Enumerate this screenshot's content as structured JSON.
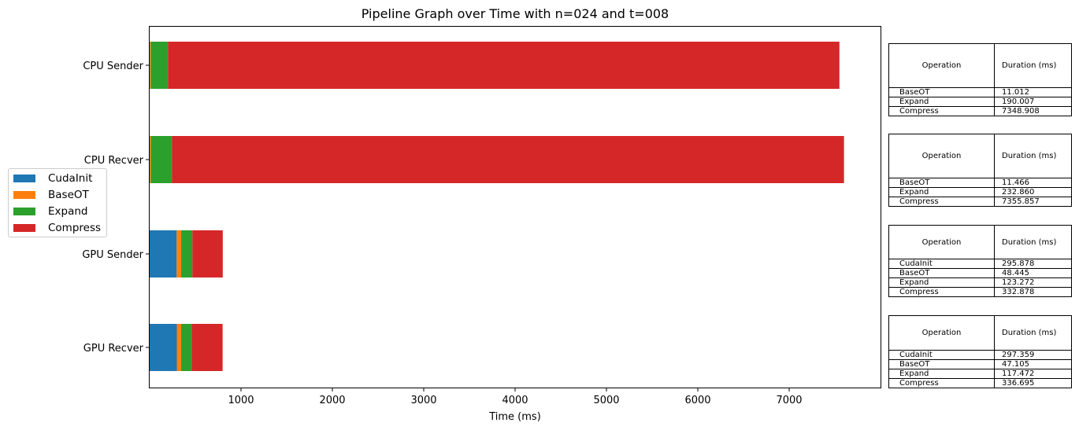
{
  "chart_data": {
    "type": "bar",
    "orientation": "horizontal",
    "stacked": true,
    "title": "Pipeline Graph over Time with n=024 and t=008",
    "xlabel": "Time (ms)",
    "ylabel": "",
    "xlim": [
      0,
      8000
    ],
    "xticks": [
      "1000",
      "2000",
      "3000",
      "4000",
      "5000",
      "6000",
      "7000"
    ],
    "categories": [
      "CPU Sender",
      "CPU Recver",
      "GPU Sender",
      "GPU Recver"
    ],
    "legend_position": "left",
    "series": [
      {
        "name": "CudaInit",
        "color": "#1f77b4",
        "values": [
          0,
          0,
          295.878,
          297.359
        ]
      },
      {
        "name": "BaseOT",
        "color": "#ff7f0e",
        "values": [
          11.012,
          11.466,
          48.445,
          47.105
        ]
      },
      {
        "name": "Expand",
        "color": "#2ca02c",
        "values": [
          190.007,
          232.86,
          123.272,
          117.472
        ]
      },
      {
        "name": "Compress",
        "color": "#d62728",
        "values": [
          7348.908,
          7355.857,
          332.878,
          336.695
        ]
      }
    ]
  },
  "tables": [
    {
      "header": [
        "Operation",
        "Duration (ms)"
      ],
      "rows": [
        [
          "BaseOT",
          "11.012"
        ],
        [
          "Expand",
          "190.007"
        ],
        [
          "Compress",
          "7348.908"
        ]
      ]
    },
    {
      "header": [
        "Operation",
        "Duration (ms)"
      ],
      "rows": [
        [
          "BaseOT",
          "11.466"
        ],
        [
          "Expand",
          "232.860"
        ],
        [
          "Compress",
          "7355.857"
        ]
      ]
    },
    {
      "header": [
        "Operation",
        "Duration (ms)"
      ],
      "rows": [
        [
          "CudaInit",
          "295.878"
        ],
        [
          "BaseOT",
          "48.445"
        ],
        [
          "Expand",
          "123.272"
        ],
        [
          "Compress",
          "332.878"
        ]
      ]
    },
    {
      "header": [
        "Operation",
        "Duration (ms)"
      ],
      "rows": [
        [
          "CudaInit",
          "297.359"
        ],
        [
          "BaseOT",
          "47.105"
        ],
        [
          "Expand",
          "117.472"
        ],
        [
          "Compress",
          "336.695"
        ]
      ]
    }
  ]
}
